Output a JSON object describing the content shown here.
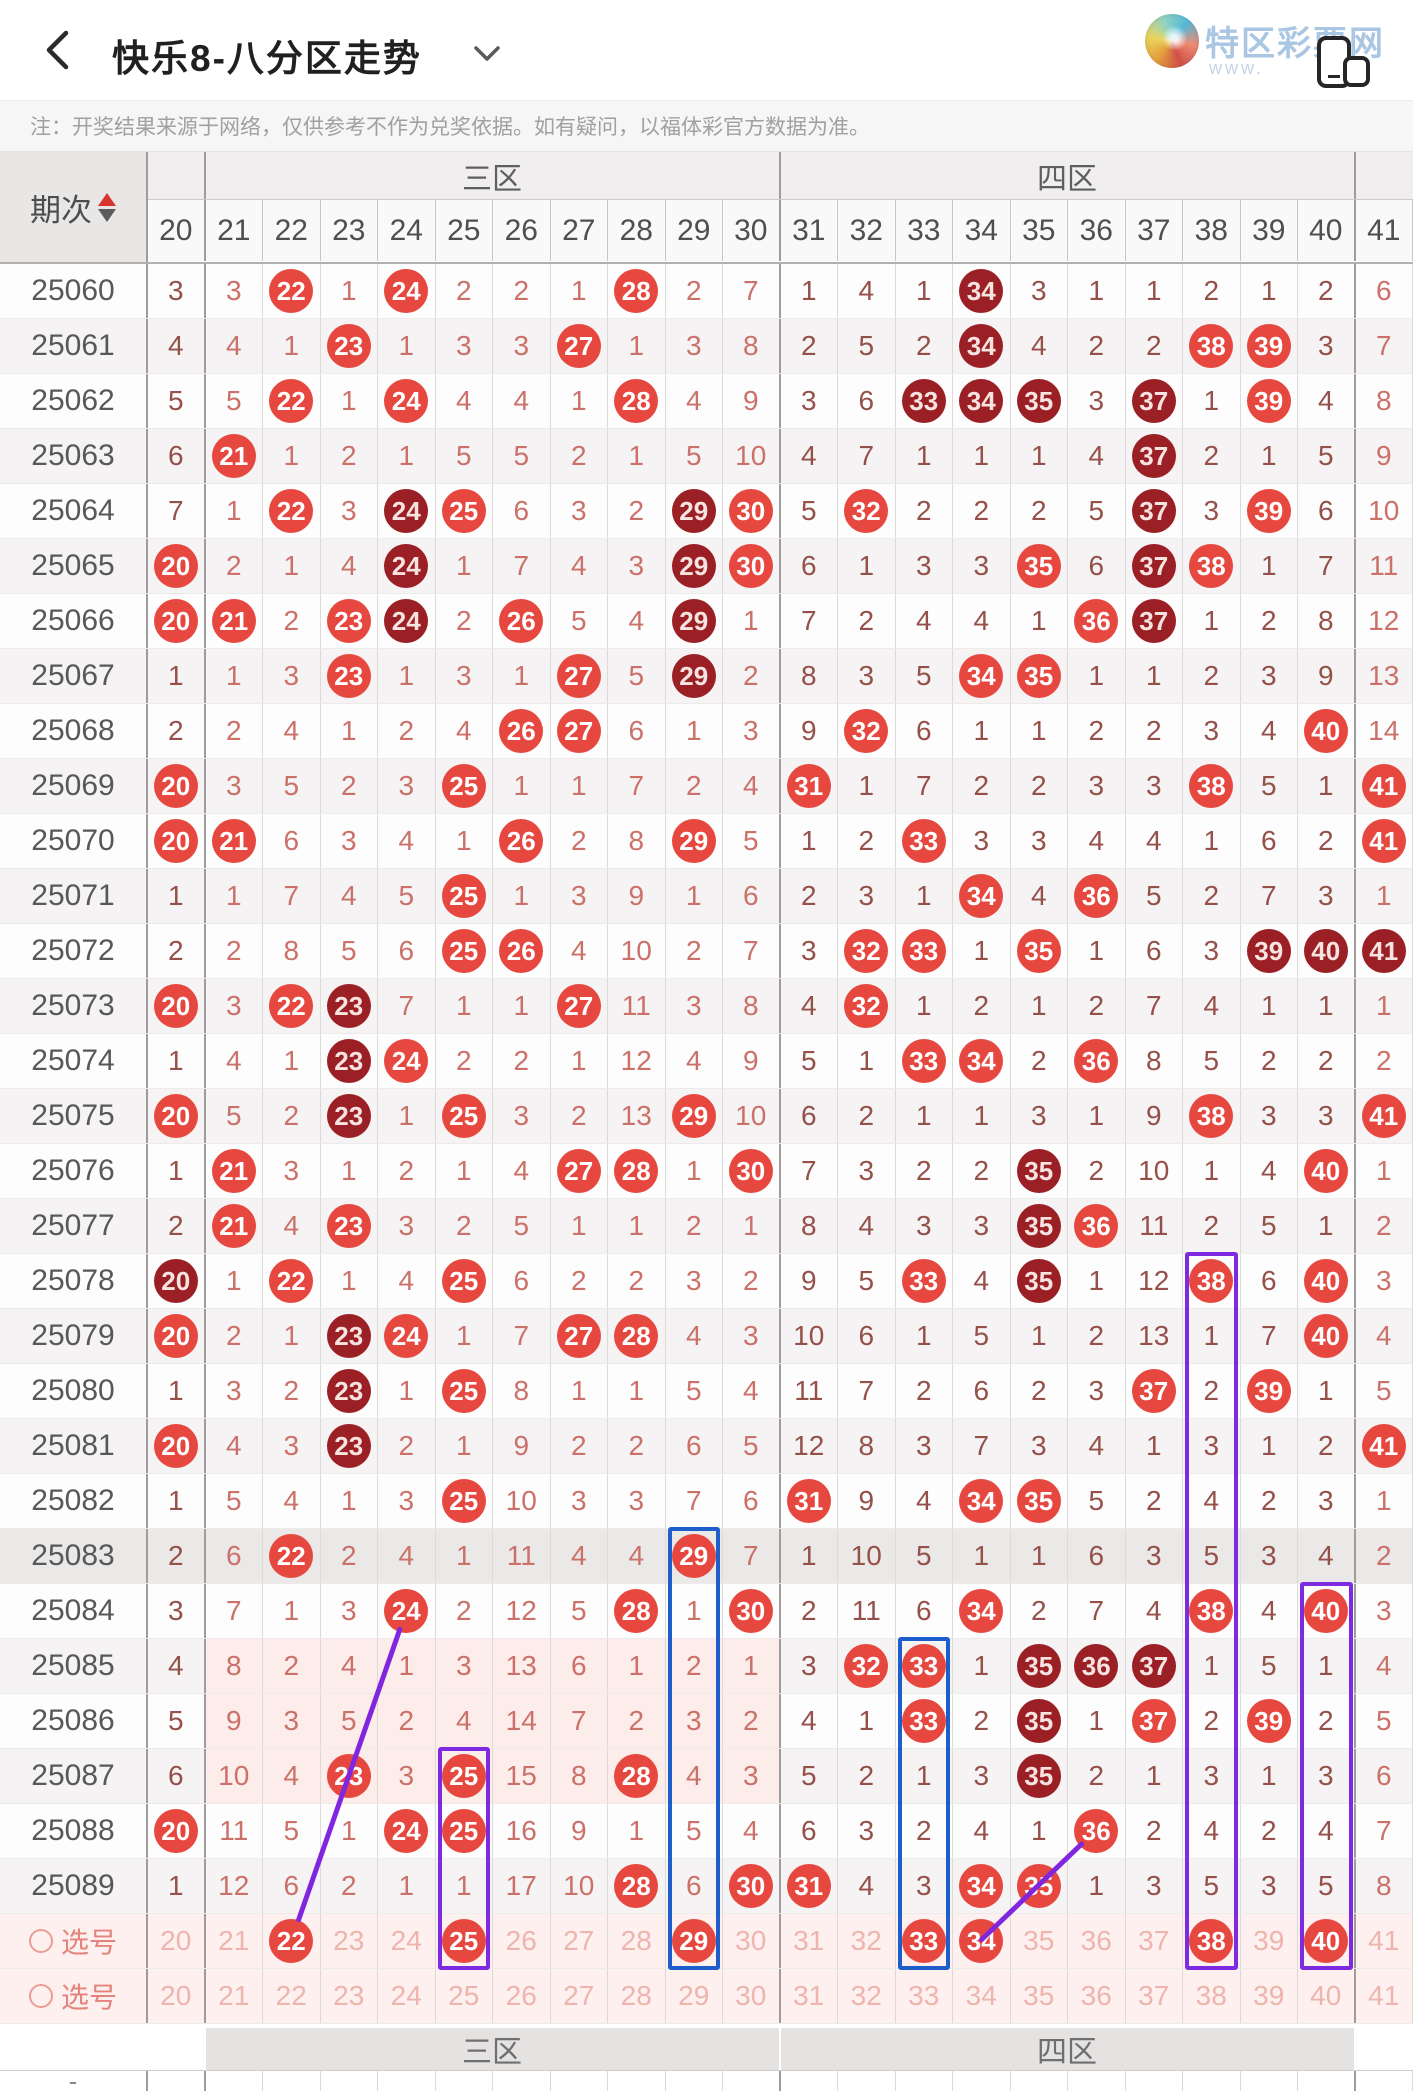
{
  "header": {
    "title": "快乐8-八分区走势",
    "back_icon": "chevron-left",
    "caret_icon": "chevron-down",
    "brand": "特区彩票网",
    "watermark_prefix": "www.",
    "watermark_suffix": ".net"
  },
  "note": "注：开奖结果来源于网络，仅供参考不作为兑奖依据。如有疑问，以福体彩官方数据为准。",
  "colors": {
    "drawn_red": "#e64840",
    "drawn_dark": "#9b2026",
    "miss_light": "#cb7169",
    "miss_dark": "#96504a",
    "highlight_purple": "#7d2ae0",
    "highlight_blue": "#1e5ecb",
    "pick_row_bg": "#fdf0ee",
    "pink_block_bg": "#fcecea"
  },
  "table": {
    "period_label": "期次",
    "columns": [
      20,
      21,
      22,
      23,
      24,
      25,
      26,
      27,
      28,
      29,
      30,
      31,
      32,
      33,
      34,
      35,
      36,
      37,
      38,
      39,
      40,
      41
    ],
    "zones": [
      {
        "label": "三区",
        "from": 21,
        "to": 30
      },
      {
        "label": "四区",
        "from": 31,
        "to": 40
      }
    ],
    "rows": [
      {
        "period": "25060",
        "cells": [
          3,
          3,
          "D",
          1,
          "D",
          2,
          2,
          1,
          "D",
          2,
          7,
          1,
          4,
          1,
          "K",
          3,
          1,
          1,
          2,
          1,
          2,
          6
        ]
      },
      {
        "period": "25061",
        "cells": [
          4,
          4,
          1,
          "D",
          1,
          3,
          3,
          "D",
          1,
          3,
          8,
          2,
          5,
          2,
          "K",
          4,
          2,
          2,
          "D",
          "D",
          3,
          7
        ]
      },
      {
        "period": "25062",
        "cells": [
          5,
          5,
          "D",
          1,
          "D",
          4,
          4,
          1,
          "D",
          4,
          9,
          3,
          6,
          "K",
          "K",
          "K",
          3,
          "K",
          1,
          "D",
          4,
          8
        ]
      },
      {
        "period": "25063",
        "cells": [
          6,
          "D",
          1,
          2,
          1,
          5,
          5,
          2,
          1,
          5,
          10,
          4,
          7,
          1,
          1,
          1,
          4,
          "K",
          2,
          1,
          5,
          9
        ]
      },
      {
        "period": "25064",
        "cells": [
          7,
          1,
          "D",
          3,
          "K",
          "D",
          6,
          3,
          2,
          "K",
          "D",
          5,
          "D",
          2,
          2,
          2,
          5,
          "K",
          3,
          "D",
          6,
          10
        ]
      },
      {
        "period": "25065",
        "cells": [
          "D",
          2,
          1,
          4,
          "K",
          1,
          7,
          4,
          3,
          "K",
          "D",
          6,
          1,
          3,
          3,
          "D",
          6,
          "K",
          "D",
          1,
          7,
          11
        ]
      },
      {
        "period": "25066",
        "cells": [
          "D",
          "D",
          2,
          "D",
          "K",
          2,
          "D",
          5,
          4,
          "K",
          1,
          7,
          2,
          4,
          4,
          1,
          "D",
          "K",
          1,
          2,
          8,
          12
        ]
      },
      {
        "period": "25067",
        "cells": [
          1,
          1,
          3,
          "D",
          1,
          3,
          1,
          "D",
          5,
          "K",
          2,
          8,
          3,
          5,
          "D",
          "D",
          1,
          1,
          2,
          3,
          9,
          13
        ]
      },
      {
        "period": "25068",
        "cells": [
          2,
          2,
          4,
          1,
          2,
          4,
          "D",
          "D",
          6,
          1,
          3,
          9,
          "D",
          6,
          1,
          1,
          2,
          2,
          3,
          4,
          "D",
          14
        ]
      },
      {
        "period": "25069",
        "cells": [
          "D",
          3,
          5,
          2,
          3,
          "D",
          1,
          1,
          7,
          2,
          4,
          "D",
          1,
          7,
          2,
          2,
          3,
          3,
          "D",
          5,
          1,
          "D"
        ]
      },
      {
        "period": "25070",
        "cells": [
          "D",
          "D",
          6,
          3,
          4,
          1,
          "D",
          2,
          8,
          "D",
          5,
          1,
          2,
          "D",
          3,
          3,
          4,
          4,
          1,
          6,
          2,
          "D"
        ]
      },
      {
        "period": "25071",
        "cells": [
          1,
          1,
          7,
          4,
          5,
          "D",
          1,
          3,
          9,
          1,
          6,
          2,
          3,
          1,
          "D",
          4,
          "D",
          5,
          2,
          7,
          3,
          1
        ]
      },
      {
        "period": "25072",
        "cells": [
          2,
          2,
          8,
          5,
          6,
          "D",
          "D",
          4,
          10,
          2,
          7,
          3,
          "D",
          "D",
          1,
          "D",
          1,
          6,
          3,
          "K",
          "K",
          "K"
        ]
      },
      {
        "period": "25073",
        "cells": [
          "D",
          3,
          "D",
          "K",
          7,
          1,
          1,
          "D",
          11,
          3,
          8,
          4,
          "D",
          1,
          2,
          1,
          2,
          7,
          4,
          1,
          1,
          1
        ]
      },
      {
        "period": "25074",
        "cells": [
          1,
          4,
          1,
          "K",
          "D",
          2,
          2,
          1,
          12,
          4,
          9,
          5,
          1,
          "D",
          "D",
          2,
          "D",
          8,
          5,
          2,
          2,
          2
        ]
      },
      {
        "period": "25075",
        "cells": [
          "D",
          5,
          2,
          "K",
          1,
          "D",
          3,
          2,
          13,
          "D",
          10,
          6,
          2,
          1,
          1,
          3,
          1,
          9,
          "D",
          3,
          3,
          "D"
        ]
      },
      {
        "period": "25076",
        "cells": [
          1,
          "D",
          3,
          1,
          2,
          1,
          4,
          "D",
          "D",
          1,
          "D",
          7,
          3,
          2,
          2,
          "K",
          2,
          10,
          1,
          4,
          "D",
          1
        ]
      },
      {
        "period": "25077",
        "cells": [
          2,
          "D",
          4,
          "D",
          3,
          2,
          5,
          1,
          1,
          2,
          1,
          8,
          4,
          3,
          3,
          "K",
          "D",
          11,
          2,
          5,
          1,
          2
        ]
      },
      {
        "period": "25078",
        "cells": [
          "K",
          1,
          "D",
          1,
          4,
          "D",
          6,
          2,
          2,
          3,
          2,
          9,
          5,
          "D",
          4,
          "K",
          1,
          12,
          "D",
          6,
          "D",
          3
        ]
      },
      {
        "period": "25079",
        "cells": [
          "D",
          2,
          1,
          "K",
          "D",
          1,
          7,
          "D",
          "D",
          4,
          3,
          10,
          6,
          1,
          5,
          1,
          2,
          13,
          1,
          7,
          "D",
          4
        ]
      },
      {
        "period": "25080",
        "cells": [
          1,
          3,
          2,
          "K",
          1,
          "D",
          8,
          1,
          1,
          5,
          4,
          11,
          7,
          2,
          6,
          2,
          3,
          "D",
          2,
          "D",
          1,
          5
        ]
      },
      {
        "period": "25081",
        "cells": [
          "D",
          4,
          3,
          "K",
          2,
          1,
          9,
          2,
          2,
          6,
          5,
          12,
          8,
          3,
          7,
          3,
          4,
          1,
          3,
          1,
          2,
          "D"
        ]
      },
      {
        "period": "25082",
        "cells": [
          1,
          5,
          4,
          1,
          3,
          "D",
          10,
          3,
          3,
          7,
          6,
          "D",
          9,
          4,
          "D",
          "D",
          5,
          2,
          4,
          2,
          3,
          1
        ]
      },
      {
        "period": "25083",
        "cells": [
          2,
          6,
          "D",
          2,
          4,
          1,
          11,
          4,
          4,
          "D",
          7,
          1,
          10,
          5,
          1,
          1,
          6,
          3,
          5,
          3,
          4,
          2
        ],
        "tint": "gray"
      },
      {
        "period": "25084",
        "cells": [
          3,
          7,
          1,
          3,
          "D",
          2,
          12,
          5,
          "D",
          1,
          "D",
          2,
          11,
          6,
          "D",
          2,
          7,
          4,
          "D",
          4,
          "D",
          3
        ]
      },
      {
        "period": "25085",
        "cells": [
          4,
          8,
          2,
          4,
          1,
          3,
          13,
          6,
          1,
          2,
          1,
          3,
          "D",
          "D",
          1,
          "K",
          "K",
          "K",
          1,
          5,
          1,
          4
        ],
        "tint": "pink"
      },
      {
        "period": "25086",
        "cells": [
          5,
          9,
          3,
          5,
          2,
          4,
          14,
          7,
          2,
          3,
          2,
          4,
          1,
          "D",
          2,
          "K",
          1,
          "D",
          2,
          "D",
          2,
          5
        ],
        "tint": "pink"
      },
      {
        "period": "25087",
        "cells": [
          6,
          10,
          4,
          "D",
          3,
          "D",
          15,
          8,
          "D",
          4,
          3,
          5,
          2,
          1,
          3,
          "K",
          2,
          1,
          3,
          1,
          3,
          6
        ],
        "tint": "pink"
      },
      {
        "period": "25088",
        "cells": [
          "D",
          11,
          5,
          1,
          "D",
          "D",
          16,
          9,
          1,
          5,
          4,
          6,
          3,
          2,
          4,
          1,
          "D",
          2,
          4,
          2,
          4,
          7
        ]
      },
      {
        "period": "25089",
        "cells": [
          1,
          12,
          6,
          2,
          1,
          1,
          17,
          10,
          "D",
          6,
          "D",
          "D",
          4,
          3,
          "D",
          "D",
          1,
          3,
          5,
          3,
          5,
          8
        ]
      }
    ],
    "pick_rows": [
      {
        "label": "选号",
        "selected": [
          22,
          25,
          29,
          33,
          34,
          38,
          40
        ]
      },
      {
        "label": "选号",
        "selected": []
      }
    ],
    "footer_dash": "-"
  },
  "overlays": {
    "rects": [
      {
        "col": 25,
        "from_row": 27,
        "color": "purple"
      },
      {
        "col": 29,
        "from_row": 23,
        "color": "blue"
      },
      {
        "col": 33,
        "from_row": 25,
        "color": "blue"
      },
      {
        "col": 38,
        "from_row": 18,
        "color": "purple"
      },
      {
        "col": 40,
        "from_row": 24,
        "color": "purple"
      }
    ],
    "lines": [
      {
        "from": {
          "col": 24,
          "row": 24,
          "trim": 21
        },
        "to": {
          "col": 22,
          "row": 30,
          "trim": 21
        }
      },
      {
        "from": {
          "col": 34,
          "row": 30,
          "trim": 0
        },
        "to": {
          "col": 36,
          "row": 28,
          "trim": 21
        }
      }
    ]
  }
}
